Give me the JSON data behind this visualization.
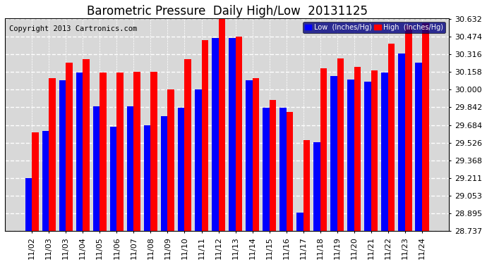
{
  "title": "Barometric Pressure  Daily High/Low  20131125",
  "copyright": "Copyright 2013 Cartronics.com",
  "categories": [
    "11/02",
    "11/03",
    "11/03",
    "11/04",
    "11/05",
    "11/06",
    "11/07",
    "11/08",
    "11/09",
    "11/10",
    "11/11",
    "11/12",
    "11/13",
    "11/14",
    "11/15",
    "11/16",
    "11/17",
    "11/18",
    "11/19",
    "11/20",
    "11/21",
    "11/22",
    "11/23",
    "11/24"
  ],
  "low_values": [
    29.21,
    29.63,
    30.08,
    30.15,
    29.85,
    29.67,
    29.85,
    29.68,
    29.76,
    29.84,
    30.0,
    30.46,
    30.46,
    30.08,
    29.84,
    29.84,
    28.9,
    29.53,
    30.12,
    30.09,
    30.07,
    30.15,
    30.32,
    30.24
  ],
  "high_values": [
    29.62,
    30.1,
    30.24,
    30.27,
    30.15,
    30.15,
    30.16,
    30.16,
    30.0,
    30.27,
    30.44,
    30.63,
    30.47,
    30.1,
    29.91,
    29.8,
    29.55,
    30.19,
    30.28,
    30.2,
    30.17,
    30.41,
    30.57,
    30.59
  ],
  "low_color": "#0000ff",
  "high_color": "#ff0000",
  "bg_color": "#ffffff",
  "plot_bg_color": "#d8d8d8",
  "grid_color": "#ffffff",
  "ylim_min": 28.737,
  "ylim_max": 30.632,
  "yticks": [
    28.737,
    28.895,
    29.053,
    29.211,
    29.368,
    29.526,
    29.684,
    29.842,
    30.0,
    30.158,
    30.316,
    30.474,
    30.632
  ],
  "title_fontsize": 12,
  "copyright_fontsize": 7.5,
  "tick_fontsize": 8,
  "legend_low_label": "Low  (Inches/Hg)",
  "legend_high_label": "High  (Inches/Hg)"
}
